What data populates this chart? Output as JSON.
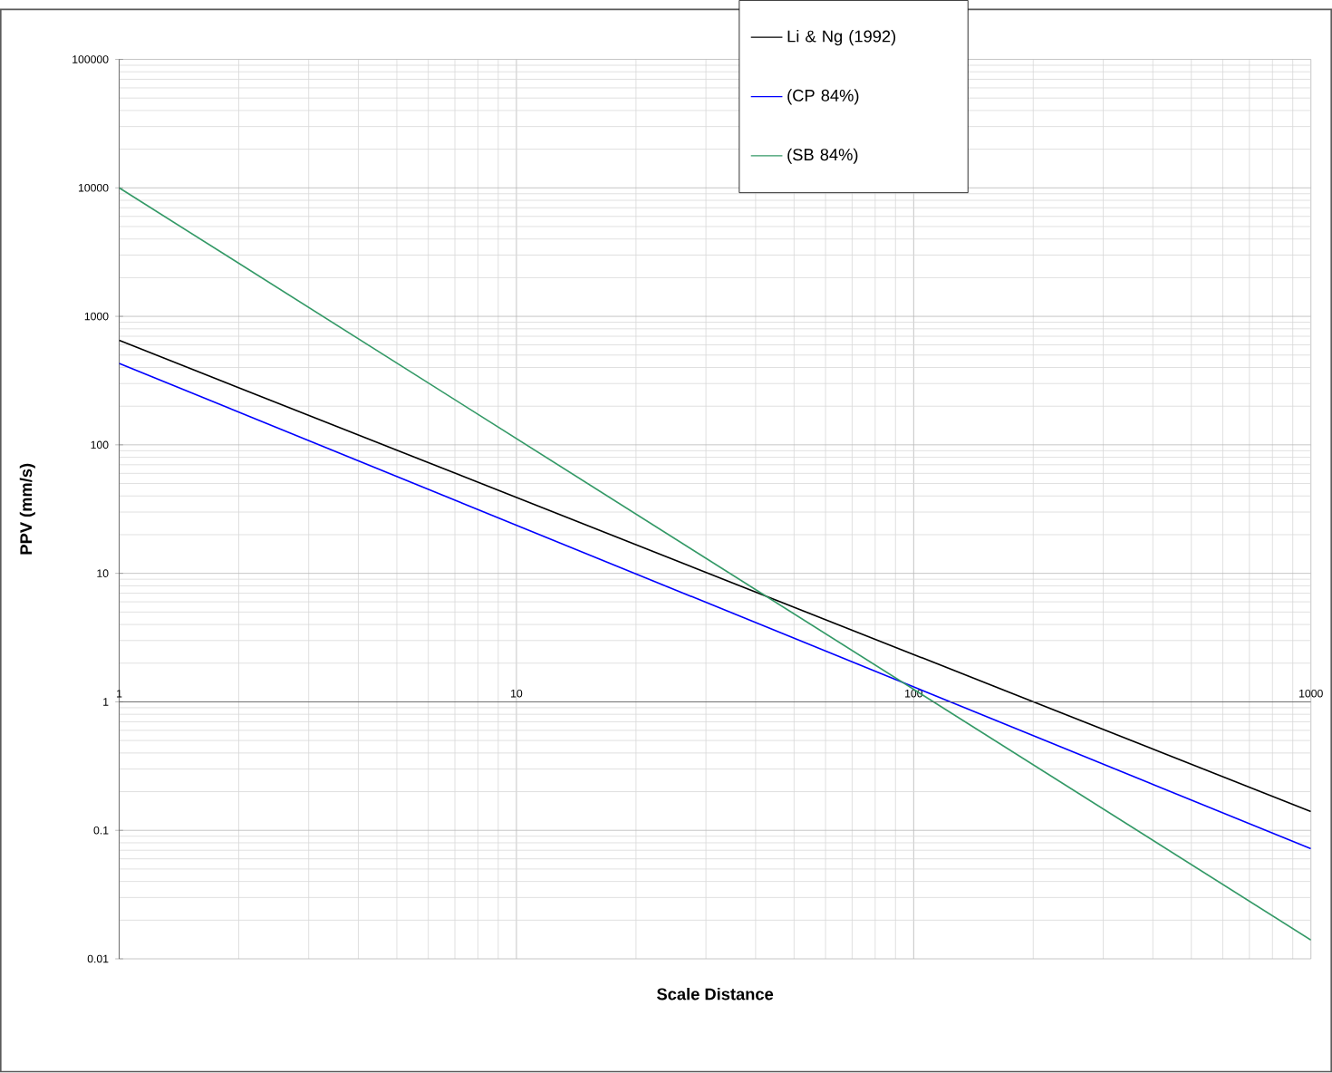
{
  "chart_data": {
    "type": "line",
    "xlabel": "Scale Distance",
    "ylabel": "PPV (mm/s)",
    "log": "xy",
    "grid": true,
    "legend": "top right",
    "xlim": [
      1,
      1000
    ],
    "xticks": [
      1,
      10,
      100,
      1000
    ],
    "ylim": [
      0.01,
      100000
    ],
    "yticks": [
      0.01,
      0.1,
      1,
      10,
      100,
      1000,
      10000,
      100000
    ],
    "x": [
      1,
      1000
    ],
    "series": [
      {
        "name": "Li & Ng (1992)",
        "color": "#000000",
        "values": [
          650,
          0.14
        ]
      },
      {
        "name": "(CP 84%)",
        "color": "#0000ff",
        "values": [
          430,
          0.072
        ]
      },
      {
        "name": "(SB 84%)",
        "color": "#339966",
        "values": [
          10000,
          0.014
        ]
      }
    ]
  }
}
